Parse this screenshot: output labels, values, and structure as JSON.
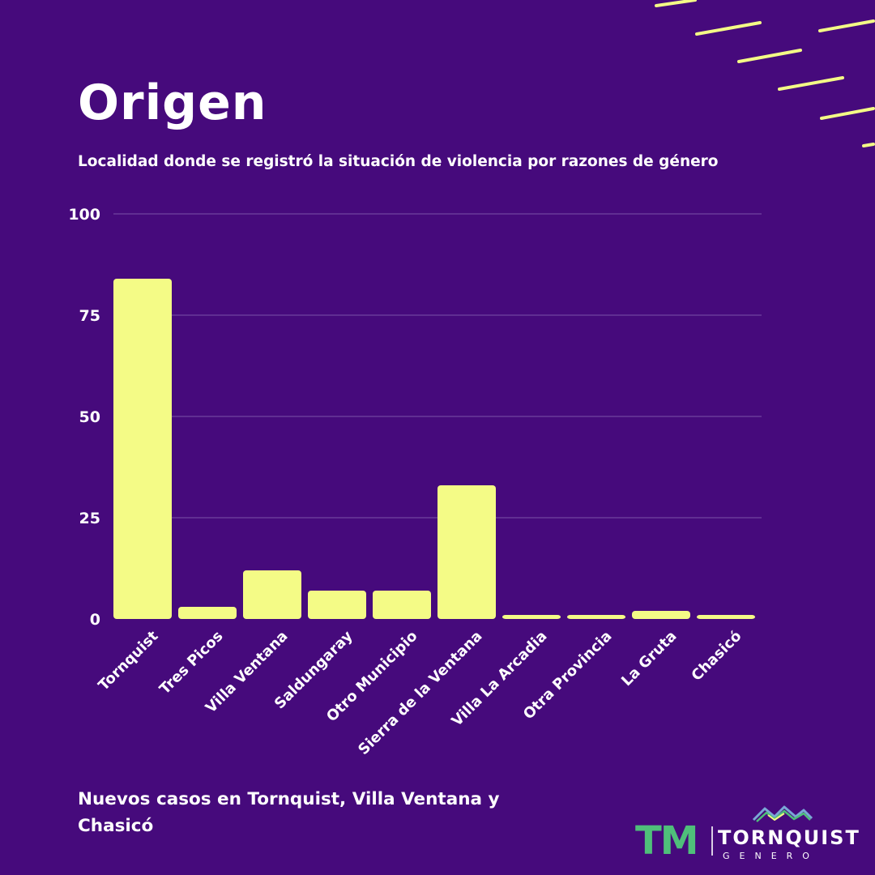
{
  "title": "Origen",
  "subtitle": "Localidad donde se registró la situación de violencia por razones de género",
  "footer": "Nuevos casos en Tornquist, Villa Ventana y Chasicó",
  "logo": {
    "mark": "TM",
    "name": "TORNQUIST",
    "tagline": "GENERO"
  },
  "colors": {
    "background": "#460a7c",
    "bar": "#f4fb86",
    "text": "#ffffff",
    "accent_green": "#4fbf7a"
  },
  "chart_data": {
    "type": "bar",
    "title": "Origen",
    "subtitle": "Localidad donde se registró la situación de violencia por razones de género",
    "categories": [
      "Tornquist",
      "Tres Picos",
      "Villa Ventana",
      "Saldungaray",
      "Otro Municipio",
      "Sierra de la Ventana",
      "Villa La Arcadia",
      "Otra Provincia",
      "La Gruta",
      "Chasicó"
    ],
    "values": [
      84,
      3,
      12,
      7,
      7,
      33,
      1,
      1,
      2,
      1
    ],
    "ylim": [
      0,
      100
    ],
    "yticks": [
      0,
      25,
      50,
      75,
      100
    ],
    "grid": true,
    "legend": "none"
  }
}
